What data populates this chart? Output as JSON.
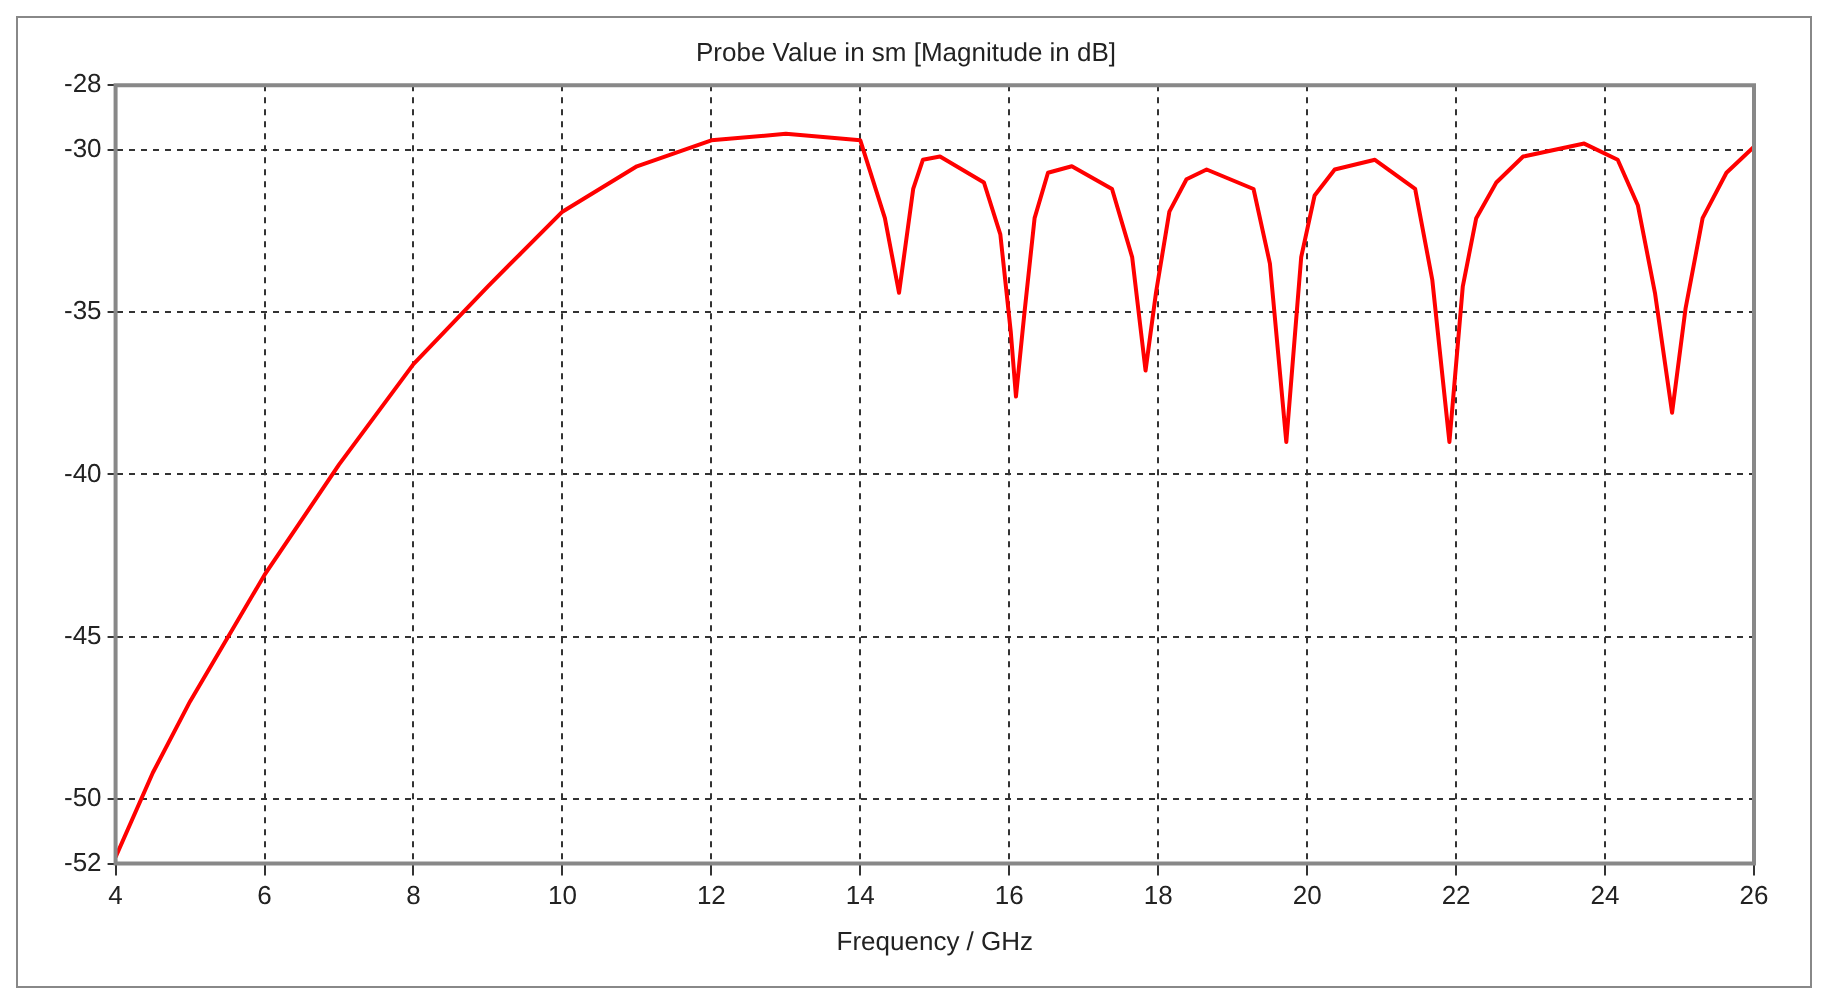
{
  "chart_data": {
    "type": "line",
    "title": "Probe Value in sm [Magnitude in dB]",
    "xlabel": "Frequency / GHz",
    "x": [
      4,
      4.5,
      5,
      6,
      7,
      8,
      9,
      10,
      11,
      12,
      13,
      14,
      14.33,
      14.52,
      14.71,
      14.84,
      15.07,
      15.66,
      15.88,
      16.02,
      16.09,
      16.2,
      16.34,
      16.52,
      16.84,
      17.38,
      17.65,
      17.83,
      17.97,
      18.15,
      18.38,
      18.65,
      19.28,
      19.5,
      19.72,
      19.92,
      20.1,
      20.37,
      20.91,
      21.45,
      21.68,
      21.91,
      22.09,
      22.27,
      22.54,
      22.9,
      23.72,
      24.17,
      24.44,
      24.67,
      24.9,
      25.08,
      25.31,
      25.63,
      26
    ],
    "series": [
      {
        "color": "#ff0000",
        "values": [
          -51.8,
          -49.2,
          -47,
          -43.1,
          -39.7,
          -36.6,
          -34.2,
          -31.9,
          -30.5,
          -29.7,
          -29.5,
          -29.7,
          -32.1,
          -34.4,
          -31.2,
          -30.3,
          -30.2,
          -31,
          -32.6,
          -35.6,
          -37.6,
          -35.1,
          -32.1,
          -30.7,
          -30.5,
          -31.2,
          -33.3,
          -36.8,
          -34.4,
          -31.9,
          -30.9,
          -30.6,
          -31.2,
          -33.5,
          -39,
          -33.3,
          -31.4,
          -30.6,
          -30.3,
          -31.2,
          -34,
          -39,
          -34.2,
          -32.1,
          -31,
          -30.2,
          -29.8,
          -30.3,
          -31.7,
          -34.4,
          -38.1,
          -34.9,
          -32.1,
          -30.7,
          -29.9
        ]
      }
    ],
    "xlim": [
      4,
      26
    ],
    "xticks": [
      4,
      6,
      8,
      10,
      12,
      14,
      16,
      18,
      20,
      22,
      24,
      26
    ],
    "ylim": [
      -52,
      -28
    ],
    "yticks": [
      -52,
      -50,
      -45,
      -40,
      -35,
      -30,
      -28
    ],
    "grid": true,
    "line_style": "solid",
    "marker": "none",
    "legend": false
  }
}
